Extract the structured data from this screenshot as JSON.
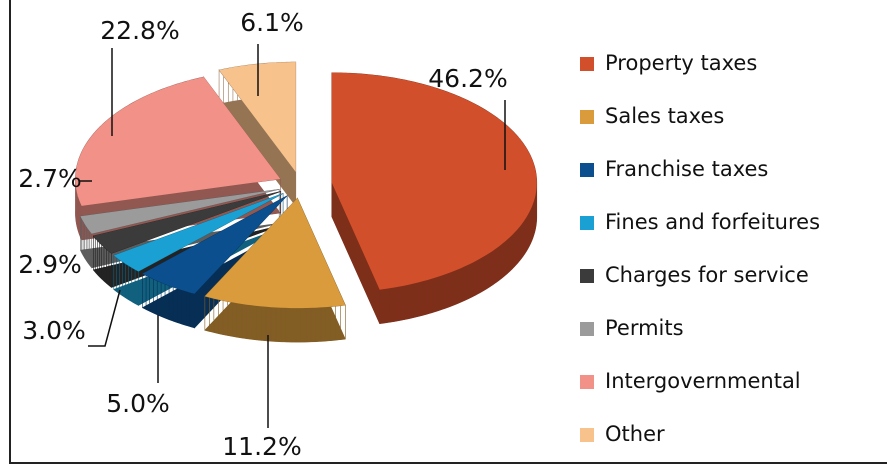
{
  "chart_data": {
    "type": "pie",
    "categories": [
      "Property taxes",
      "Sales taxes",
      "Franchise taxes",
      "Fines and forfeitures",
      "Charges for service",
      "Permits",
      "Intergovernmental",
      "Other"
    ],
    "values": [
      46.2,
      11.2,
      5.0,
      3.0,
      2.9,
      2.7,
      22.8,
      6.1
    ],
    "value_labels": [
      "46.2%",
      "11.2%",
      "5.0%",
      "3.0%",
      "2.9%",
      "2.7%",
      "22.8%",
      "6.1%"
    ],
    "colors": [
      "#d24f2b",
      "#d99b3c",
      "#0b4f8e",
      "#1aa0d2",
      "#3b3b3b",
      "#9b9b9b",
      "#f29187",
      "#f8c28c"
    ],
    "legend": "right"
  }
}
